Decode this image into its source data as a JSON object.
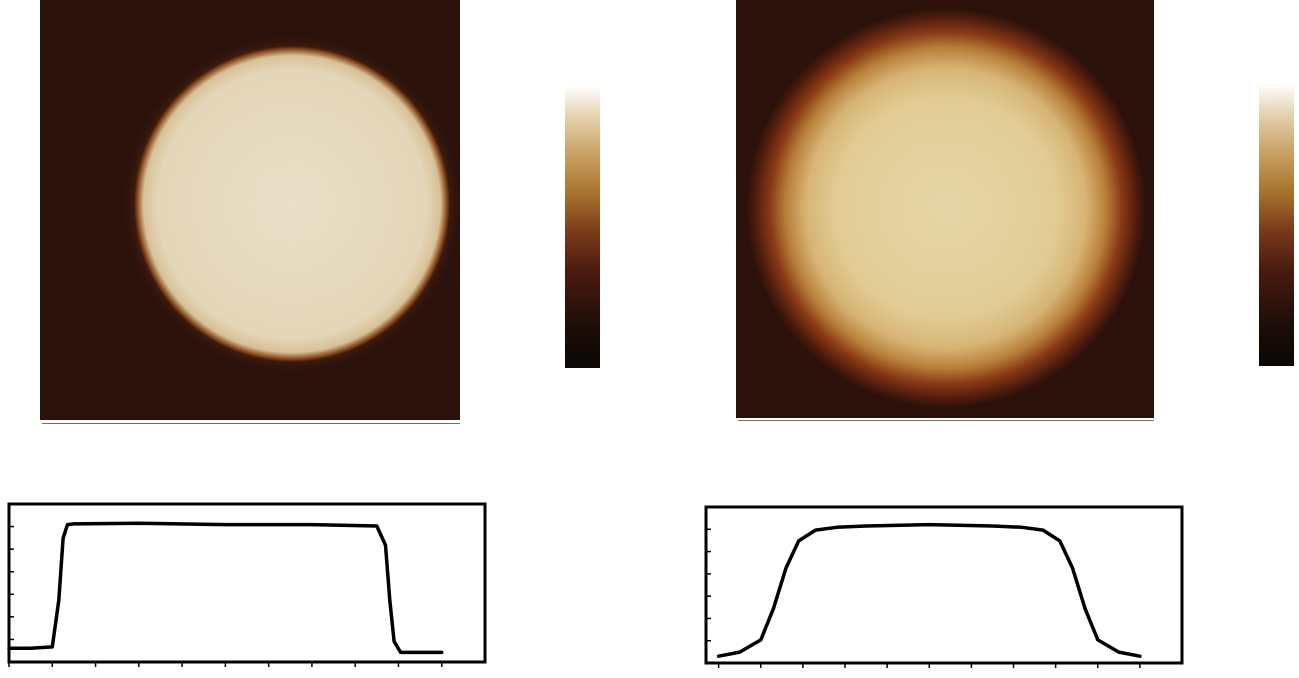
{
  "figure": {
    "panels": [
      {
        "id": "left",
        "image": {
          "kind": "afm-height-map",
          "shape": "sharp-edged-disk",
          "colors": {
            "background": "#2a120b",
            "center": "#e8dcc2",
            "edge": "#6b2c12"
          }
        },
        "colorbar_colors": [
          "#0a0805",
          "#1c0d08",
          "#4a1a10",
          "#7a3a1a",
          "#a8742e",
          "#c9a265",
          "#e6d5b4",
          "#ffffff"
        ],
        "profile": {
          "type": "line",
          "description_shape": "sharp-step",
          "x": [
            0,
            0.5,
            1.0,
            1.15,
            1.25,
            1.35,
            1.5,
            3.0,
            5.0,
            7.0,
            8.5,
            8.7,
            8.8,
            8.9,
            9.05,
            9.3,
            10.0
          ],
          "y": [
            0.05,
            0.05,
            0.06,
            0.4,
            0.85,
            0.95,
            0.955,
            0.96,
            0.95,
            0.95,
            0.94,
            0.8,
            0.4,
            0.1,
            0.02,
            0.02,
            0.02
          ],
          "xlim": [
            0,
            11
          ],
          "ylim": [
            -0.05,
            1.1
          ]
        }
      },
      {
        "id": "right",
        "image": {
          "kind": "afm-height-map",
          "shape": "diffuse-disk",
          "colors": {
            "background": "#2a120b",
            "center": "#e2cf9a",
            "edge": "#8a3a14"
          }
        },
        "colorbar_colors": [
          "#0a0805",
          "#1c0d08",
          "#4a1a10",
          "#7a3a1a",
          "#a8742e",
          "#c9a265",
          "#e6d5b4",
          "#ffffff"
        ],
        "profile": {
          "type": "line",
          "description_shape": "smooth-plateau",
          "x": [
            0,
            0.5,
            1.0,
            1.3,
            1.6,
            1.9,
            2.3,
            2.8,
            3.5,
            5.0,
            6.5,
            7.2,
            7.7,
            8.1,
            8.4,
            8.7,
            9.0,
            9.5,
            10.0
          ],
          "y": [
            0.0,
            0.03,
            0.12,
            0.35,
            0.65,
            0.85,
            0.93,
            0.95,
            0.96,
            0.97,
            0.96,
            0.95,
            0.93,
            0.85,
            0.65,
            0.35,
            0.12,
            0.03,
            0.0
          ],
          "xlim": [
            -0.3,
            11
          ],
          "ylim": [
            -0.05,
            1.1
          ]
        }
      }
    ]
  }
}
